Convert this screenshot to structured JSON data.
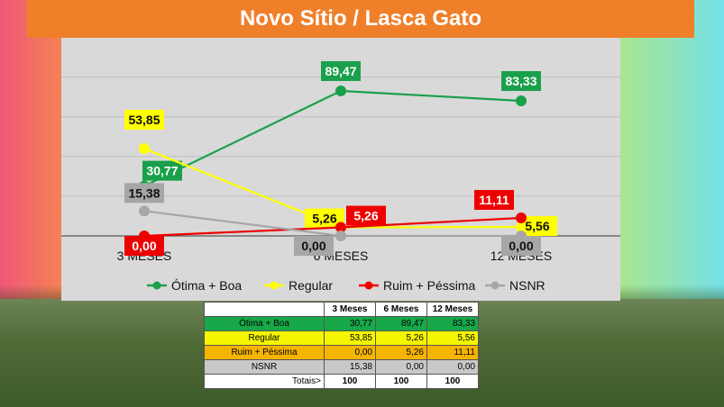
{
  "title": "Novo Sítio / Lasca Gato",
  "colors": {
    "otima": "#1aa04b",
    "regular": "#ffff00",
    "ruim": "#ee0000",
    "nsnr": "#a6a6a6"
  },
  "chart_data": {
    "type": "line",
    "title": "Novo Sítio / Lasca Gato",
    "categories": [
      "3 MESES",
      "6 MESES",
      "12 MESES"
    ],
    "ylim": [
      0,
      100
    ],
    "grid": true,
    "legend_position": "bottom",
    "series": [
      {
        "name": "Ótima + Boa",
        "values": [
          30.77,
          89.47,
          83.33
        ],
        "labels": [
          "30,77",
          "89,47",
          "83,33"
        ],
        "color": "#1aa04b"
      },
      {
        "name": "Regular",
        "values": [
          53.85,
          5.26,
          5.56
        ],
        "labels": [
          "53,85",
          "5,26",
          "5,56"
        ],
        "color": "#ffff00"
      },
      {
        "name": "Ruim + Péssima",
        "values": [
          0.0,
          5.26,
          11.11
        ],
        "labels": [
          "0,00",
          "5,26",
          "11,11"
        ],
        "color": "#ee0000"
      },
      {
        "name": "NSNR",
        "values": [
          15.38,
          0.0,
          0.0
        ],
        "labels": [
          "15,38",
          "0,00",
          "0,00"
        ],
        "color": "#a6a6a6"
      }
    ]
  },
  "table": {
    "headers": [
      "",
      "3 Meses",
      "6 Meses",
      "12 Meses"
    ],
    "rows": [
      {
        "label": "Ótima + Boa",
        "values": [
          "30,77",
          "89,47",
          "83,33"
        ]
      },
      {
        "label": "Regular",
        "values": [
          "53,85",
          "5,26",
          "5,56"
        ]
      },
      {
        "label": "Ruim + Péssima",
        "values": [
          "0,00",
          "5,26",
          "11,11"
        ]
      },
      {
        "label": "NSNR",
        "values": [
          "15,38",
          "0,00",
          "0,00"
        ]
      }
    ],
    "totals_label": "Totais>",
    "totals": [
      "100",
      "100",
      "100"
    ]
  }
}
